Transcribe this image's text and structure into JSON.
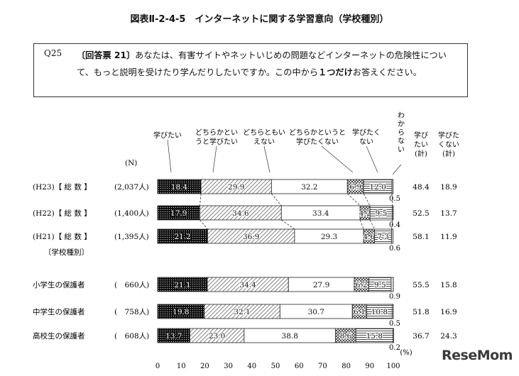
{
  "title": "図表Ⅱ-2-4-5　インターネットに関する学習意向（学校種別）",
  "question": {
    "id": "Q25",
    "card": "〔回答票 21〕",
    "text_parts": [
      "あなたは、有害サイトやネットいじめの問題などインターネットの危険性について、もっと説明を受けたり学んだりしたいですか。この中から",
      "１つだけ",
      "お答えください。"
    ]
  },
  "logo": "ReseMom",
  "chart_data": {
    "type": "bar",
    "orientation": "horizontal-stacked-100",
    "n_header": "(N)",
    "group_label": "〔学校種別〕",
    "categories": [
      {
        "label": "(H23)【 総  数 】",
        "n": "(2,037人)"
      },
      {
        "label": "(H22)【 総  数 】",
        "n": "(1,400人)"
      },
      {
        "label": "(H21)【 総  数 】",
        "n": "(1,395人)"
      },
      {
        "label": "小学生の保護者",
        "n": "(　660人)"
      },
      {
        "label": "中学生の保護者",
        "n": "(　758人)"
      },
      {
        "label": "高校生の保護者",
        "n": "(　608人)"
      }
    ],
    "series": [
      {
        "name": "学びたい",
        "values": [
          18.4,
          17.9,
          21.2,
          21.1,
          19.8,
          13.7
        ],
        "labels": [
          "18.4",
          "17.9",
          "21.2",
          "21.1",
          "19.8",
          "13.7"
        ],
        "pattern": "dots-dark"
      },
      {
        "name": "どちらかというと学びたい",
        "values": [
          29.9,
          34.6,
          36.9,
          34.4,
          32.1,
          23.0
        ],
        "labels": [
          "29.9",
          "34.6",
          "36.9",
          "34.4",
          "32.1",
          "23.0"
        ],
        "pattern": "diagonal"
      },
      {
        "name": "どちらともいえない",
        "values": [
          32.2,
          33.4,
          29.3,
          27.9,
          30.7,
          38.8
        ],
        "labels": [
          "32.2",
          "33.4",
          "29.3",
          "27.9",
          "30.7",
          "38.8"
        ],
        "pattern": "white"
      },
      {
        "name": "どちらかというと学びたくない",
        "values": [
          6.9,
          4.2,
          4.6,
          6.2,
          6.1,
          8.6
        ],
        "labels": [
          "6.9",
          "4.2",
          "4.6",
          "6.2",
          "6.1",
          "8.6"
        ],
        "pattern": "crosshatch"
      },
      {
        "name": "学びたくない",
        "values": [
          12.0,
          9.5,
          7.3,
          9.5,
          10.8,
          15.8
        ],
        "labels": [
          "12.0",
          "9.5",
          "7.3",
          "9.5",
          "10.8",
          "15.8"
        ],
        "pattern": "horizontal"
      },
      {
        "name": "わからない",
        "values": [
          0.5,
          0.4,
          0.6,
          0.9,
          0.5,
          0.2
        ],
        "labels": [
          "0.5",
          "0.4",
          "0.6",
          "0.9",
          "0.5",
          "0.2"
        ],
        "pattern": "light"
      }
    ],
    "summary_columns": [
      {
        "name": "学びたい（計）",
        "values": [
          "48.4",
          "52.5",
          "58.1",
          "55.5",
          "51.8",
          "36.7"
        ]
      },
      {
        "name": "学びたくない（計）",
        "values": [
          "18.9",
          "13.7",
          "11.9",
          "15.8",
          "16.9",
          "24.3"
        ]
      }
    ],
    "x_ticks": [
      0,
      10,
      20,
      30,
      40,
      50,
      60,
      70,
      80,
      90,
      100
    ],
    "xlim": [
      0,
      100
    ],
    "unit": "(%)"
  }
}
